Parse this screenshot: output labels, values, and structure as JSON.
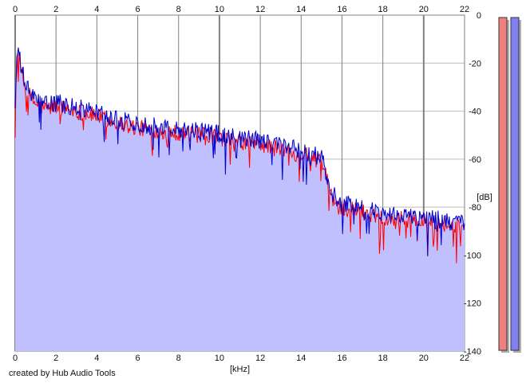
{
  "credit": "created by Hub Audio Tools",
  "colors": {
    "background": "#ffffff",
    "grid_major": "#808080",
    "grid_minor": "#bdbdbd",
    "fill": "#c0c0ff",
    "left_channel": "#ff0000",
    "right_channel": "#0000cc",
    "meter_left": "#f08080",
    "meter_right": "#8080f0",
    "meter_shadow": "#b0b0b0"
  },
  "chart_data": {
    "type": "area",
    "title": "",
    "xlabel": "[kHz]",
    "ylabel": "[dB]",
    "x_axis_position": "top-and-bottom",
    "y_axis_position": "right",
    "xlim": [
      0,
      22
    ],
    "ylim": [
      -140,
      0
    ],
    "x_ticks": [
      "0",
      "2",
      "4",
      "6",
      "8",
      "10",
      "12",
      "14",
      "16",
      "18",
      "20",
      "22"
    ],
    "y_ticks": [
      "0",
      "-20",
      "-40",
      "-60",
      "-80",
      "-100",
      "-120",
      "-140"
    ],
    "grid": true,
    "legend": "none",
    "envelope": {
      "x": [
        0,
        0.1,
        0.25,
        0.5,
        1,
        1.5,
        2,
        3,
        4,
        5,
        5.5,
        6,
        7,
        8,
        9,
        10,
        11,
        12,
        13,
        14,
        14.5,
        15,
        15.2,
        15.5,
        16,
        17,
        18,
        19,
        20,
        21,
        22
      ],
      "y": [
        -38,
        -15,
        -20,
        -30,
        -36,
        -38,
        -37,
        -39,
        -41,
        -44,
        -45,
        -46,
        -47,
        -48,
        -49,
        -50,
        -52,
        -53,
        -55,
        -57,
        -58,
        -60,
        -66,
        -75,
        -79,
        -81,
        -83,
        -84,
        -85,
        -86,
        -88
      ]
    },
    "series": [
      {
        "color": "#ff0000",
        "noise": 3.5,
        "offset": -1.0,
        "max_depth": 16
      },
      {
        "color": "#0000cc",
        "noise": 3.8,
        "offset": 0.6,
        "max_depth": 14
      }
    ],
    "level_meters": [
      {
        "color": "#f08080",
        "level_db": 0
      },
      {
        "color": "#8080f0",
        "level_db": 0
      }
    ]
  }
}
